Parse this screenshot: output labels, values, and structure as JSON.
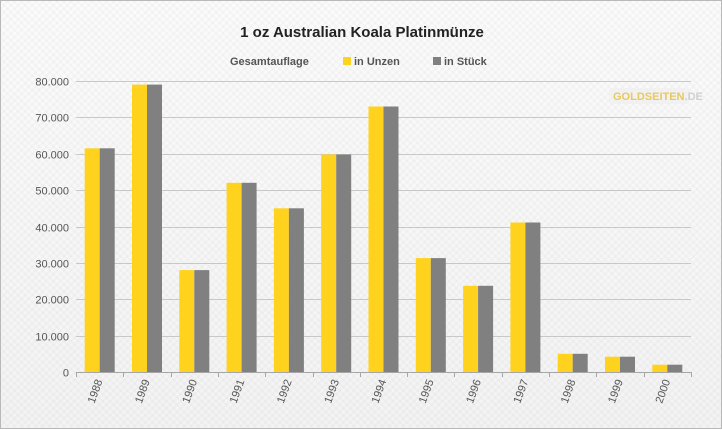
{
  "colors": {
    "series_unzen": "#ffd21e",
    "series_stueck": "#808080",
    "grid": "#c8c8c8",
    "text": "#555555",
    "logo_gold": "#e8c860",
    "logo_silver": "#d0d0d0"
  },
  "logo": {
    "text_main": "GOLDSEITEN",
    "text_suffix": ".DE"
  },
  "chart_data": {
    "type": "bar",
    "title": "1 oz Australian Koala Platinmünze",
    "legend_title": "Gesamtauflage",
    "legend_position": "top",
    "grid": true,
    "ylim": [
      0,
      80000
    ],
    "yticks": [
      0,
      10000,
      20000,
      30000,
      40000,
      50000,
      60000,
      70000,
      80000
    ],
    "ytick_labels": [
      "0",
      "10.000",
      "20.000",
      "30.000",
      "40.000",
      "50.000",
      "60.000",
      "70.000",
      "80.000"
    ],
    "categories": [
      "1988",
      "1989",
      "1990",
      "1991",
      "1992",
      "1993",
      "1994",
      "1995",
      "1996",
      "1997",
      "1998",
      "1999",
      "2000"
    ],
    "series": [
      {
        "name": "in Unzen",
        "color": "#ffd21e",
        "values": [
          61500,
          79000,
          28000,
          52000,
          45000,
          59800,
          73000,
          31300,
          23700,
          41100,
          5000,
          4200,
          2000
        ]
      },
      {
        "name": "in Stück",
        "color": "#808080",
        "values": [
          61500,
          79000,
          28000,
          52000,
          45000,
          59800,
          73000,
          31300,
          23700,
          41100,
          5000,
          4200,
          2000
        ]
      }
    ]
  }
}
